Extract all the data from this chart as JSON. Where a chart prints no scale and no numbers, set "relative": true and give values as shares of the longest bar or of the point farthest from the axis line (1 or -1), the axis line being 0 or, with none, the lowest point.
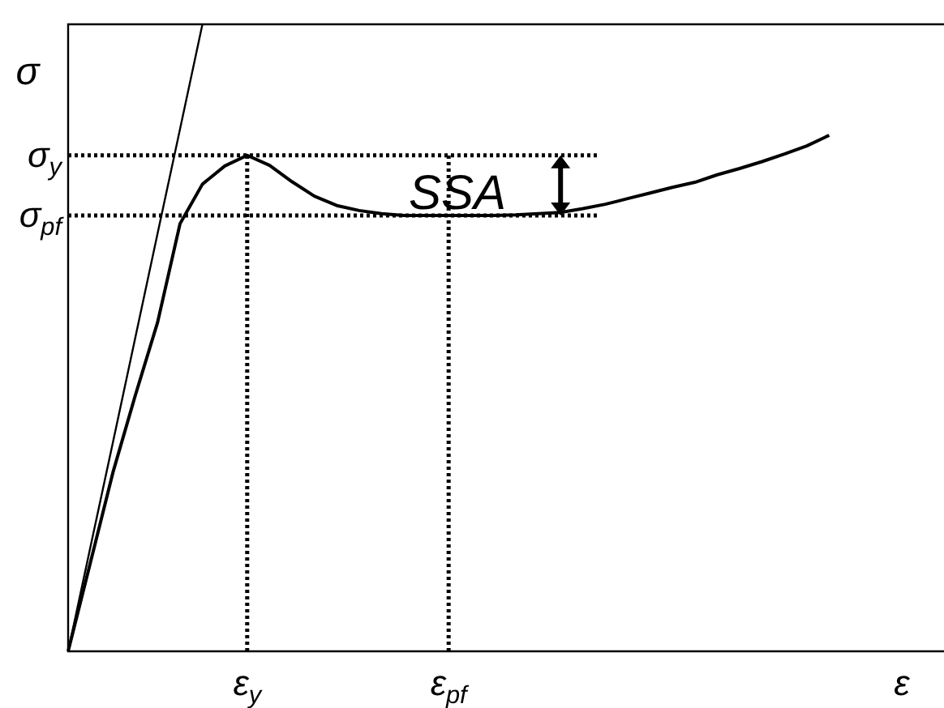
{
  "chart_data": {
    "type": "line",
    "relative": true,
    "xlabel": "ε",
    "ylabel": "σ",
    "categories": [
      null,
      null,
      null,
      null,
      null,
      null,
      null,
      null,
      "ε$_{y}$",
      null,
      null,
      null,
      null,
      null,
      null,
      null,
      null,
      "ε$_{pf}$",
      null,
      null,
      null,
      null,
      null,
      null,
      null,
      null,
      null,
      null,
      null,
      null,
      null,
      null,
      null,
      null,
      null
    ],
    "series": [
      {
        "color": "#000000",
        "values": [
          0,
          0.142,
          0.285,
          0.408,
          0.525,
          0.682,
          0.745,
          0.774,
          0.791,
          0.775,
          0.749,
          0.726,
          0.711,
          0.703,
          0.698,
          0.695,
          0.695,
          0.695,
          0.695,
          0.695,
          0.696,
          0.698,
          0.7,
          0.706,
          0.713,
          0.722,
          0.731,
          0.74,
          0.748,
          0.76,
          0.77,
          0.781,
          0.793,
          0.806,
          0.823
        ]
      },
      {
        "color": "#000000",
        "values": [
          0,
          0.167,
          0.333,
          0.5,
          0.667,
          0.833,
          1,
          null,
          null,
          null,
          null,
          null,
          null,
          null,
          null,
          null,
          null,
          null,
          null,
          null,
          null,
          null,
          null,
          null,
          null,
          null,
          null,
          null,
          null,
          null,
          null,
          null,
          null,
          null,
          null
        ]
      }
    ],
    "ref_lines": [
      {
        "axis": "y",
        "value": 0.791,
        "label": "σ$_{y}$",
        "line_style": "dotted"
      },
      {
        "axis": "y",
        "value": 0.695,
        "label": "σ$_{pf}$",
        "line_style": "dotted"
      },
      {
        "axis": "x",
        "value": "ε$_{y}$",
        "line_style": "dotted"
      },
      {
        "axis": "x",
        "value": "ε$_{pf}$",
        "line_style": "dotted"
      }
    ],
    "annotations": [
      "SSA"
    ]
  }
}
